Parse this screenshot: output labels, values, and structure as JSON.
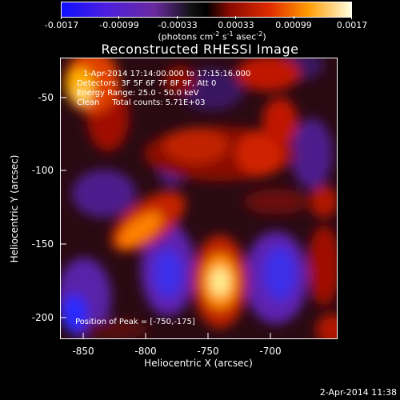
{
  "colorbar": {
    "ticks": [
      "-0.0017",
      "-0.00099",
      "-0.00033",
      "0.00033",
      "0.00099",
      "0.0017"
    ],
    "unit_prefix": "(photons cm",
    "unit_sup1": "-2",
    "unit_mid": " s",
    "unit_sup2": "-1",
    "unit_mid2": " asec",
    "unit_sup3": "-2",
    "unit_suffix": ")"
  },
  "title": "Reconstructed RHESSI Image",
  "info": {
    "time": "1-Apr-2014 17:14:00.000 to 17:15:16.000",
    "detectors": "Detectors: 3F 5F 6F 7F 8F 9F, Att 0",
    "energy": "Energy Range: 25.0 - 50.0 keV",
    "clean": "Clean     Total counts: 5.71E+03",
    "peak": "Position of Peak = [-750,-175]"
  },
  "axes": {
    "xlabel": "Heliocentric X (arcsec)",
    "ylabel": "Heliocentric Y (arcsec)",
    "xticks": [
      "-850",
      "-800",
      "-750",
      "-700"
    ],
    "yticks": [
      "-50",
      "-100",
      "-150",
      "-200"
    ]
  },
  "timestamp": "2-Apr-2014 11:38"
}
